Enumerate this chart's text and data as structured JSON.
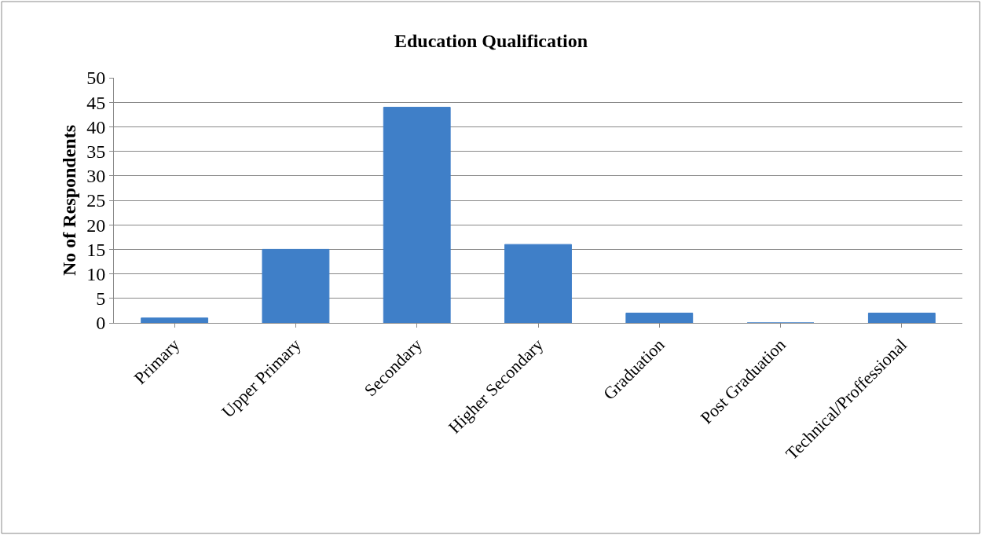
{
  "chart_data": {
    "type": "bar",
    "title": "Education Qualification",
    "ylabel": "No of Respondents",
    "categories": [
      "Primary",
      "Upper Primary",
      "Secondary",
      "Higher Secondary",
      "Graduation",
      "Post Graduation",
      "Technical/Proffessional"
    ],
    "values": [
      1,
      15,
      44,
      16,
      2,
      0,
      2
    ],
    "color": "#3f7fc8",
    "ylim": [
      0,
      50
    ],
    "yticks": [
      0,
      5,
      10,
      15,
      20,
      25,
      30,
      35,
      40,
      45,
      50
    ],
    "grid": "y",
    "legend": false
  }
}
